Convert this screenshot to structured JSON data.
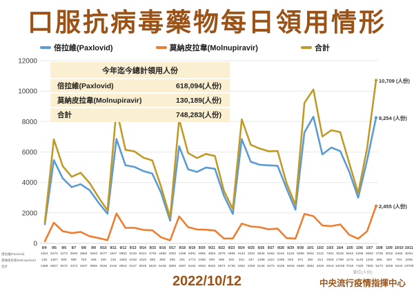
{
  "title": "口服抗病毒藥物每日領用情形",
  "theme": {
    "accent_brown": "#9B5216",
    "summary_box_bg": "#FAEFD0",
    "grid_color": "#E7E7E7"
  },
  "legend": [
    {
      "label": "倍拉維(Paxlovid)",
      "color": "#5B9BD5"
    },
    {
      "label": "莫納皮拉韋(Molnupiravir)",
      "color": "#ED7D31"
    },
    {
      "label": "合計",
      "color": "#C09A27"
    }
  ],
  "summary_box": {
    "title": "今年迄今總計領用人份",
    "rows": [
      {
        "label": "倍拉維(Paxlovid)",
        "value": "618,094(人份)"
      },
      {
        "label": "莫納皮拉韋(Molnupiravir)",
        "value": "130,189(人份)"
      },
      {
        "label": "合計",
        "value": "748,283(人份)"
      }
    ]
  },
  "chart_data": {
    "type": "line",
    "title": "口服抗病毒藥物每日領用情形",
    "xlabel": "",
    "ylabel": "",
    "ylim": [
      0,
      12000
    ],
    "ytick_step": 2000,
    "grid": true,
    "legend_position": "top",
    "x": [
      "9/4",
      "9/5",
      "9/6",
      "9/7",
      "9/8",
      "9/9",
      "9/10",
      "9/11",
      "9/12",
      "9/13",
      "9/14",
      "9/15",
      "9/16",
      "9/17",
      "9/18",
      "9/19",
      "9/20",
      "9/21",
      "9/22",
      "9/23",
      "9/24",
      "9/25",
      "9/26",
      "9/27",
      "9/28",
      "9/29",
      "9/30",
      "10/1",
      "10/2",
      "10/3",
      "10/4",
      "10/5",
      "10/6",
      "10/7",
      "10/8",
      "10/9",
      "10/10",
      "10/11"
    ],
    "series": [
      {
        "name": "倍拉維(Paxlovid)",
        "color": "#5B9BD5",
        "values": [
          1254,
          5470,
          4272,
          3694,
          3884,
          3493,
          2677,
          1947,
          6853,
          5129,
          5024,
          4750,
          4589,
          3300,
          1486,
          6381,
          4865,
          4693,
          4978,
          4899,
          3134,
          1932,
          6848,
          5362,
          5163,
          5125,
          5098,
          3602,
          2212,
          7291,
          8318,
          5843,
          6296,
          6060,
          4708,
          3002,
          5450,
          8254
        ]
      },
      {
        "name": "莫納皮拉韋(Molnupiravir)",
        "color": "#ED7D31",
        "values": [
          135,
          1357,
          800,
          680,
          753,
          466,
          349,
          215,
          1963,
          1018,
          1022,
          883,
          859,
          395,
          201,
          1771,
          1068,
          909,
          896,
          840,
          318,
          327,
          1298,
          1110,
          1065,
          923,
          971,
          350,
          313,
          1928,
          1788,
          1175,
          1133,
          1245,
          566,
          304,
          794,
          2455
        ]
      },
      {
        "name": "合計",
        "color": "#C09A27",
        "values": [
          1389,
          6827,
          5072,
          4374,
          4637,
          3959,
          3026,
          2162,
          8816,
          6147,
          6046,
          5633,
          5448,
          3695,
          1687,
          8152,
          5933,
          5602,
          5874,
          5739,
          3452,
          2259,
          8146,
          6472,
          6228,
          6048,
          6069,
          3952,
          2525,
          9219,
          10106,
          7018,
          7429,
          7305,
          5274,
          3306,
          6244,
          10709
        ]
      }
    ],
    "annotations": [
      {
        "text": "10,709 (人份)",
        "series_index": 2
      },
      {
        "text": "8,254 (人份)",
        "series_index": 0
      },
      {
        "text": "2,455 (人份)",
        "series_index": 1
      }
    ]
  },
  "table": {
    "unit_note": "單位(人份)"
  },
  "footer": {
    "date": "2022/10/12",
    "org": "中央流行疫情指揮中心"
  }
}
